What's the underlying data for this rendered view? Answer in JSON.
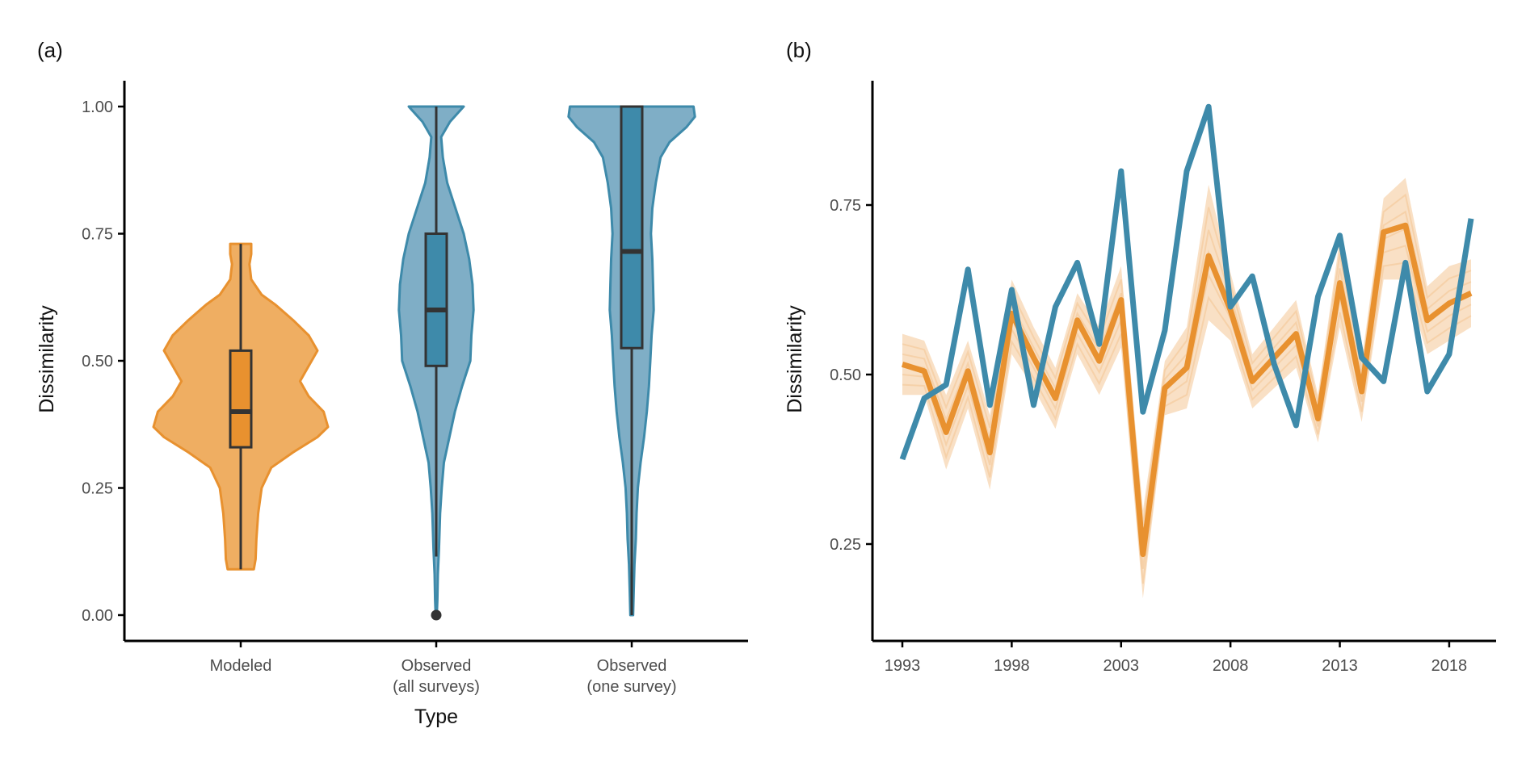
{
  "colors": {
    "modeled": "#E8912F",
    "modeled_fill": "#EFAE62",
    "observed": "#3E8AAA",
    "observed_fill": "#7FAEC6",
    "box_line": "#333333",
    "axis": "#000000"
  },
  "chart_data": [
    {
      "panel": "(a)",
      "type": "violin",
      "xlabel": "Type",
      "ylabel": "Dissimilarity",
      "ylim": [
        0,
        1
      ],
      "yticks": [
        "0.00",
        "0.25",
        "0.50",
        "0.75",
        "1.00"
      ],
      "categories": [
        "Modeled",
        "Observed\n(all surveys)",
        "Observed\n(one survey)"
      ],
      "category_lines": [
        [
          "Modeled"
        ],
        [
          "Observed",
          "(all surveys)"
        ],
        [
          "Observed",
          "(one survey)"
        ]
      ],
      "violins": [
        {
          "category": "Modeled",
          "color_key": "modeled",
          "y_min": 0.09,
          "y_max": 0.73,
          "density": [
            [
              0.09,
              0.15
            ],
            [
              0.11,
              0.17
            ],
            [
              0.15,
              0.18
            ],
            [
              0.2,
              0.2
            ],
            [
              0.25,
              0.24
            ],
            [
              0.29,
              0.35
            ],
            [
              0.32,
              0.6
            ],
            [
              0.35,
              0.88
            ],
            [
              0.37,
              1.0
            ],
            [
              0.4,
              0.95
            ],
            [
              0.43,
              0.78
            ],
            [
              0.46,
              0.68
            ],
            [
              0.49,
              0.78
            ],
            [
              0.52,
              0.88
            ],
            [
              0.55,
              0.78
            ],
            [
              0.58,
              0.6
            ],
            [
              0.61,
              0.4
            ],
            [
              0.63,
              0.24
            ],
            [
              0.66,
              0.12
            ],
            [
              0.69,
              0.1
            ],
            [
              0.71,
              0.12
            ],
            [
              0.73,
              0.12
            ]
          ],
          "box": {
            "q1": 0.33,
            "median": 0.4,
            "q3": 0.52,
            "whisker_low": 0.09,
            "whisker_high": 0.73
          }
        },
        {
          "category": "Observed (all surveys)",
          "color_key": "observed",
          "y_min": 0.0,
          "y_max": 1.0,
          "density": [
            [
              0.0,
              0.01
            ],
            [
              0.03,
              0.02
            ],
            [
              0.08,
              0.03
            ],
            [
              0.13,
              0.05
            ],
            [
              0.2,
              0.07
            ],
            [
              0.25,
              0.1
            ],
            [
              0.3,
              0.14
            ],
            [
              0.35,
              0.24
            ],
            [
              0.4,
              0.34
            ],
            [
              0.45,
              0.47
            ],
            [
              0.5,
              0.62
            ],
            [
              0.55,
              0.64
            ],
            [
              0.6,
              0.68
            ],
            [
              0.65,
              0.66
            ],
            [
              0.7,
              0.6
            ],
            [
              0.75,
              0.5
            ],
            [
              0.8,
              0.35
            ],
            [
              0.85,
              0.2
            ],
            [
              0.9,
              0.12
            ],
            [
              0.94,
              0.09
            ],
            [
              0.97,
              0.25
            ],
            [
              1.0,
              0.5
            ]
          ],
          "box": {
            "q1": 0.49,
            "median": 0.6,
            "q3": 0.75,
            "whisker_low": 0.115,
            "whisker_high": 1.0
          },
          "outliers": [
            0.0
          ]
        },
        {
          "category": "Observed (one survey)",
          "color_key": "observed",
          "y_min": 0.0,
          "y_max": 1.0,
          "density": [
            [
              0.0,
              0.02
            ],
            [
              0.05,
              0.03
            ],
            [
              0.1,
              0.04
            ],
            [
              0.15,
              0.06
            ],
            [
              0.2,
              0.07
            ],
            [
              0.25,
              0.09
            ],
            [
              0.3,
              0.13
            ],
            [
              0.35,
              0.18
            ],
            [
              0.4,
              0.22
            ],
            [
              0.45,
              0.25
            ],
            [
              0.5,
              0.27
            ],
            [
              0.55,
              0.29
            ],
            [
              0.6,
              0.32
            ],
            [
              0.65,
              0.31
            ],
            [
              0.7,
              0.3
            ],
            [
              0.75,
              0.28
            ],
            [
              0.8,
              0.3
            ],
            [
              0.85,
              0.35
            ],
            [
              0.9,
              0.42
            ],
            [
              0.93,
              0.55
            ],
            [
              0.96,
              0.8
            ],
            [
              0.98,
              0.92
            ],
            [
              1.0,
              0.9
            ]
          ],
          "box": {
            "q1": 0.525,
            "median": 0.715,
            "q3": 1.0,
            "whisker_low": 0.0,
            "whisker_high": 1.0
          }
        }
      ]
    },
    {
      "panel": "(b)",
      "type": "line",
      "xlabel": "",
      "ylabel": "Dissimilarity",
      "xlim": [
        1992.5,
        2019.5
      ],
      "ylim": [
        0.11,
        0.905
      ],
      "xticks": [
        1993,
        1998,
        2003,
        2008,
        2013,
        2018
      ],
      "yticks": [
        "0.25",
        "0.50",
        "0.75"
      ],
      "x": [
        1993,
        1994,
        1995,
        1996,
        1997,
        1998,
        1999,
        2000,
        2001,
        2002,
        2003,
        2004,
        2005,
        2006,
        2007,
        2008,
        2009,
        2010,
        2011,
        2012,
        2013,
        2014,
        2015,
        2016,
        2017,
        2018,
        2019
      ],
      "series": [
        {
          "color_key": "modeled",
          "role": "modeled",
          "values": [
            0.515,
            0.505,
            0.415,
            0.505,
            0.385,
            0.59,
            0.525,
            0.465,
            0.58,
            0.52,
            0.61,
            0.235,
            0.48,
            0.51,
            0.675,
            0.595,
            0.49,
            0.525,
            0.56,
            0.435,
            0.635,
            0.475,
            0.71,
            0.72,
            0.58,
            0.605,
            0.62
          ]
        },
        {
          "color_key": "observed",
          "role": "observed",
          "values": [
            0.375,
            0.465,
            0.485,
            0.655,
            0.455,
            0.625,
            0.455,
            0.6,
            0.665,
            0.545,
            0.8,
            0.445,
            0.565,
            0.8,
            0.895,
            0.6,
            0.645,
            0.515,
            0.425,
            0.615,
            0.705,
            0.525,
            0.49,
            0.665,
            0.475,
            0.53,
            0.73
          ]
        }
      ],
      "envelope": {
        "color_key": "modeled",
        "lower": [
          0.47,
          0.47,
          0.36,
          0.45,
          0.33,
          0.53,
          0.48,
          0.42,
          0.53,
          0.47,
          0.54,
          0.17,
          0.44,
          0.45,
          0.58,
          0.55,
          0.45,
          0.48,
          0.51,
          0.4,
          0.57,
          0.43,
          0.64,
          0.64,
          0.53,
          0.55,
          0.57
        ],
        "upper": [
          0.56,
          0.55,
          0.47,
          0.55,
          0.44,
          0.64,
          0.57,
          0.51,
          0.62,
          0.57,
          0.66,
          0.3,
          0.52,
          0.57,
          0.78,
          0.65,
          0.53,
          0.57,
          0.61,
          0.47,
          0.7,
          0.52,
          0.76,
          0.79,
          0.63,
          0.66,
          0.67
        ]
      }
    }
  ]
}
